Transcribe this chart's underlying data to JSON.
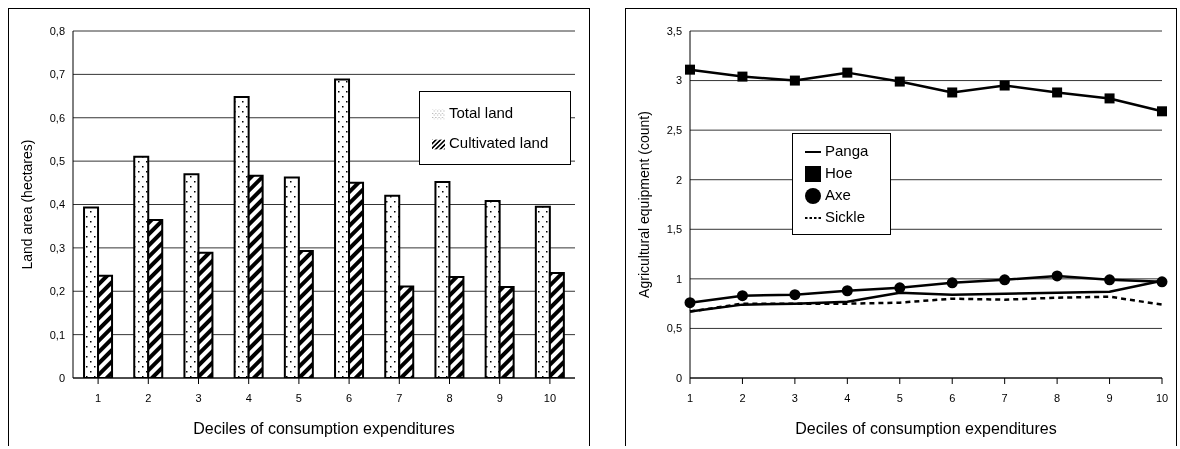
{
  "chart_data": [
    {
      "type": "bar",
      "xlabel": "Deciles of consumption expenditures",
      "ylabel": "Land area (hectares)",
      "categories": [
        "1",
        "2",
        "3",
        "4",
        "5",
        "6",
        "7",
        "8",
        "9",
        "10"
      ],
      "series": [
        {
          "name": "Total land",
          "color": "#000000",
          "values": [
            0.393,
            0.51,
            0.47,
            0.648,
            0.462,
            0.688,
            0.42,
            0.452,
            0.408,
            0.395
          ]
        },
        {
          "name": "Cultivated land",
          "color": "#000000",
          "values": [
            0.236,
            0.364,
            0.289,
            0.466,
            0.293,
            0.45,
            0.211,
            0.233,
            0.21,
            0.242
          ]
        }
      ],
      "ylim": [
        0,
        0.8
      ],
      "yticks": [
        0,
        {
          "value": 0.1,
          "label": "0,1"
        },
        {
          "value": 0.2,
          "label": "0,2"
        },
        {
          "value": 0.3,
          "label": "0,3"
        },
        {
          "value": 0.4,
          "label": "0,4"
        },
        {
          "value": 0.5,
          "label": "0,5"
        },
        {
          "value": 0.6,
          "label": "0,6"
        },
        {
          "value": 0.7,
          "label": "0,7"
        },
        {
          "value": 0.8,
          "label": "0,8"
        }
      ],
      "grid": "y",
      "legend": "top right"
    },
    {
      "type": "line",
      "xlabel": "Deciles of consumption expenditures",
      "ylabel": "Agricultural equipment (count)",
      "categories": [
        "1",
        "2",
        "3",
        "4",
        "5",
        "6",
        "7",
        "8",
        "9",
        "10"
      ],
      "series": [
        {
          "name": "Panga",
          "color": "#000000",
          "marker": "none",
          "line_style": "solid",
          "values": [
            0.67,
            0.74,
            0.75,
            0.77,
            0.86,
            0.84,
            0.85,
            0.86,
            0.87,
            0.98
          ]
        },
        {
          "name": "Hoe",
          "color": "#000000",
          "marker": "square",
          "line_style": "solid",
          "values": [
            3.11,
            3.04,
            3.0,
            3.08,
            2.99,
            2.88,
            2.95,
            2.88,
            2.82,
            2.69
          ]
        },
        {
          "name": "Axe",
          "color": "#000000",
          "marker": "circle",
          "line_style": "solid",
          "values": [
            0.76,
            0.83,
            0.84,
            0.88,
            0.91,
            0.96,
            0.99,
            1.03,
            0.99,
            0.97
          ]
        },
        {
          "name": "Sickle",
          "color": "#000000",
          "marker": "none",
          "line_style": "dashed",
          "values": [
            0.67,
            0.75,
            0.75,
            0.75,
            0.76,
            0.8,
            0.79,
            0.81,
            0.82,
            0.74
          ]
        }
      ],
      "ylim": [
        0,
        3.5
      ],
      "yticks": [
        0,
        {
          "value": 0.5,
          "label": "0,5"
        },
        1,
        {
          "value": 1.5,
          "label": "1,5"
        },
        2,
        {
          "value": 2.5,
          "label": "2,5"
        },
        3,
        {
          "value": 3.5,
          "label": "3,5"
        }
      ],
      "grid": "y",
      "legend": "left"
    }
  ]
}
